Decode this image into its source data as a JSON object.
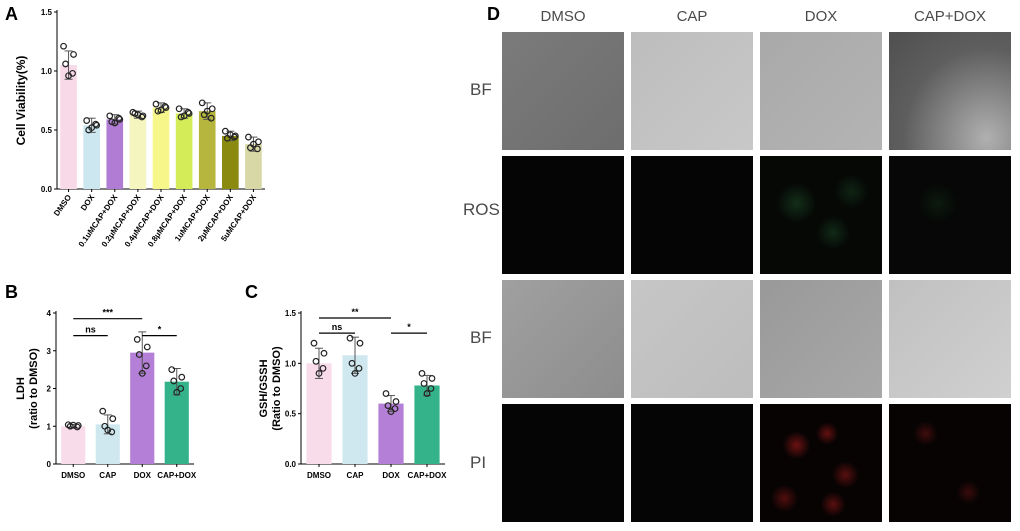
{
  "figure": {
    "panel_letters": [
      "A",
      "B",
      "C",
      "D"
    ]
  },
  "chart_data": [
    {
      "panel": "A",
      "type": "bar",
      "ylabel": "Cell Viability(%)",
      "ylim": [
        0,
        1.5
      ],
      "yticks": [
        "0.0",
        "0.5",
        "1.0",
        "1.5"
      ],
      "categories": [
        "DMSO",
        "DOX",
        "0.1uMCAP+DOX",
        "0.2μMCAP+DOX",
        "0.4μMCAP+DOX",
        "0.8μMCAP+DOX",
        "1uMCAP+DOX",
        "2μMCAP+DOX",
        "5uMCAP+DOX"
      ],
      "values": [
        1.05,
        0.54,
        0.59,
        0.63,
        0.69,
        0.64,
        0.66,
        0.45,
        0.38
      ],
      "errors": [
        0.12,
        0.06,
        0.04,
        0.03,
        0.04,
        0.04,
        0.07,
        0.04,
        0.06
      ],
      "points": [
        [
          1.21,
          1.14,
          1.06,
          0.98,
          0.96
        ],
        [
          0.58,
          0.54,
          0.5,
          0.55,
          0.52
        ],
        [
          0.62,
          0.59,
          0.57,
          0.6,
          0.56
        ],
        [
          0.65,
          0.62,
          0.64,
          0.61,
          0.63
        ],
        [
          0.72,
          0.69,
          0.66,
          0.7,
          0.67
        ],
        [
          0.68,
          0.64,
          0.61,
          0.65,
          0.62
        ],
        [
          0.73,
          0.68,
          0.63,
          0.6,
          0.66
        ],
        [
          0.49,
          0.45,
          0.43,
          0.44,
          0.46
        ],
        [
          0.44,
          0.4,
          0.35,
          0.34,
          0.38
        ]
      ],
      "colors": [
        "#f8d9e8",
        "#cce7ef",
        "#b07cd4",
        "#f4f5bf",
        "#f6f68a",
        "#d3ec57",
        "#b6b53d",
        "#8b8a10",
        "#d8d8a6"
      ]
    },
    {
      "panel": "B",
      "type": "bar",
      "ylabel": "LDH",
      "ylabel2": "(ratio to DMSO)",
      "ylim": [
        0,
        4
      ],
      "yticks": [
        "0",
        "1",
        "2",
        "3",
        "4"
      ],
      "categories": [
        "DMSO",
        "CAP",
        "DOX",
        "CAP+DOX"
      ],
      "values": [
        1.0,
        1.05,
        2.95,
        2.18
      ],
      "errors": [
        0.05,
        0.25,
        0.55,
        0.35
      ],
      "points": [
        [
          1.04,
          1.02,
          1.0,
          0.98,
          1.03
        ],
        [
          1.4,
          1.2,
          1.0,
          0.85,
          0.9
        ],
        [
          3.3,
          3.1,
          2.9,
          2.6,
          2.4
        ],
        [
          2.5,
          2.3,
          2.2,
          2.0,
          1.9
        ]
      ],
      "colors": [
        "#f8dcea",
        "#cfe8f0",
        "#b47fd6",
        "#34b38a"
      ],
      "significance": [
        {
          "from": 0,
          "to": 1,
          "label": "ns",
          "y": 3.4
        },
        {
          "from": 0,
          "to": 2,
          "label": "***",
          "y": 3.85
        },
        {
          "from": 2,
          "to": 3,
          "label": "*",
          "y": 3.4
        }
      ]
    },
    {
      "panel": "C",
      "type": "bar",
      "ylabel": "GSH/GSSH",
      "ylabel2": "(Ratio to DMSO)",
      "ylim": [
        0,
        1.5
      ],
      "yticks": [
        "0.0",
        "0.5",
        "1.0",
        "1.5"
      ],
      "categories": [
        "DMSO",
        "CAP",
        "DOX",
        "CAP+DOX"
      ],
      "values": [
        1.0,
        1.08,
        0.6,
        0.78
      ],
      "errors": [
        0.15,
        0.18,
        0.08,
        0.1
      ],
      "points": [
        [
          1.2,
          1.1,
          1.02,
          0.95,
          0.9
        ],
        [
          1.25,
          1.2,
          1.0,
          0.95,
          0.9
        ],
        [
          0.7,
          0.62,
          0.58,
          0.55,
          0.52
        ],
        [
          0.9,
          0.85,
          0.8,
          0.75,
          0.7
        ]
      ],
      "colors": [
        "#f8dcea",
        "#cfe8f0",
        "#b47fd6",
        "#34b38a"
      ],
      "significance": [
        {
          "from": 0,
          "to": 1,
          "label": "ns",
          "y": 1.3
        },
        {
          "from": 0,
          "to": 2,
          "label": "**",
          "y": 1.45
        },
        {
          "from": 2,
          "to": 3,
          "label": "*",
          "y": 1.3
        }
      ]
    }
  ],
  "microscopy": {
    "columns": [
      "DMSO",
      "CAP",
      "DOX",
      "CAP+DOX"
    ],
    "rows": [
      "BF",
      "ROS",
      "BF",
      "PI"
    ]
  }
}
